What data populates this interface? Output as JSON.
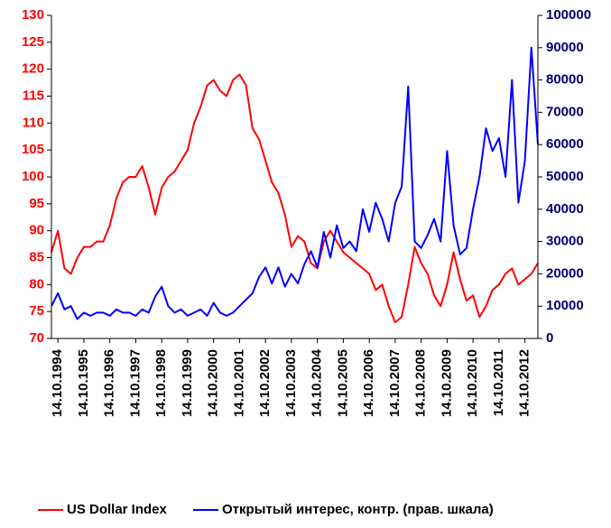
{
  "chart_data": {
    "type": "line",
    "categories": [
      null,
      "14.10.1994",
      null,
      null,
      null,
      "14.10.1995",
      null,
      null,
      null,
      "14.10.1996",
      null,
      null,
      null,
      "14.10.1997",
      null,
      null,
      null,
      "14.10.1998",
      null,
      null,
      null,
      "14.10.1999",
      null,
      null,
      null,
      "14.10.2000",
      null,
      null,
      null,
      "14.10.2001",
      null,
      null,
      null,
      "14.10.2002",
      null,
      null,
      null,
      "14.10.2003",
      null,
      null,
      null,
      "14.10.2004",
      null,
      null,
      null,
      "14.10.2005",
      null,
      null,
      null,
      "14.10.2006",
      null,
      null,
      null,
      "14.10.2007",
      null,
      null,
      null,
      "14.10.2008",
      null,
      null,
      null,
      "14.10.2009",
      null,
      null,
      null,
      "14.10.2010",
      null,
      null,
      null,
      "14.10.2011",
      null,
      null,
      null,
      "14.10.2012",
      null,
      null
    ],
    "series": [
      {
        "name": "US Dollar Index",
        "color": "#ff0000",
        "axis": "y",
        "values": [
          86,
          90,
          83,
          82,
          85,
          87,
          87,
          88,
          88,
          91,
          96,
          99,
          100,
          100,
          102,
          98,
          93,
          98,
          100,
          101,
          103,
          105,
          110,
          113,
          117,
          118,
          116,
          115,
          118,
          119,
          117,
          109,
          107,
          103,
          99,
          97,
          93,
          87,
          89,
          88,
          84,
          83,
          88,
          90,
          88,
          86,
          85,
          84,
          83,
          82,
          79,
          80,
          76,
          73,
          74,
          80,
          87,
          84,
          82,
          78,
          76,
          80,
          86,
          81,
          77,
          78,
          74,
          76,
          79,
          80,
          82,
          83,
          80,
          81,
          82,
          84
        ]
      },
      {
        "name": "Открытый интерес, контр. (прав. шкала)",
        "color": "#0000ff",
        "axis": "y2",
        "values": [
          10000,
          14000,
          9000,
          10000,
          6000,
          8000,
          7000,
          8000,
          8000,
          7000,
          9000,
          8000,
          8000,
          7000,
          9000,
          8000,
          13000,
          16000,
          10000,
          8000,
          9000,
          7000,
          8000,
          9000,
          7000,
          11000,
          8000,
          7000,
          8000,
          10000,
          12000,
          14000,
          19000,
          22000,
          17000,
          22000,
          16000,
          20000,
          17000,
          23000,
          27000,
          22000,
          33000,
          25000,
          35000,
          28000,
          30000,
          27000,
          40000,
          33000,
          42000,
          37000,
          30000,
          42000,
          47000,
          78000,
          30000,
          28000,
          32000,
          37000,
          30000,
          58000,
          35000,
          26000,
          28000,
          40000,
          50000,
          65000,
          58000,
          62000,
          50000,
          80000,
          42000,
          55000,
          90000,
          60000
        ]
      }
    ],
    "ylim": [
      70,
      130
    ],
    "yticks": [
      70,
      75,
      80,
      85,
      90,
      95,
      100,
      105,
      110,
      115,
      120,
      125,
      130
    ],
    "y2lim": [
      0,
      100000
    ],
    "y2ticks": [
      0,
      10000,
      20000,
      30000,
      40000,
      50000,
      60000,
      70000,
      80000,
      90000,
      100000
    ],
    "legend": "bottom"
  }
}
